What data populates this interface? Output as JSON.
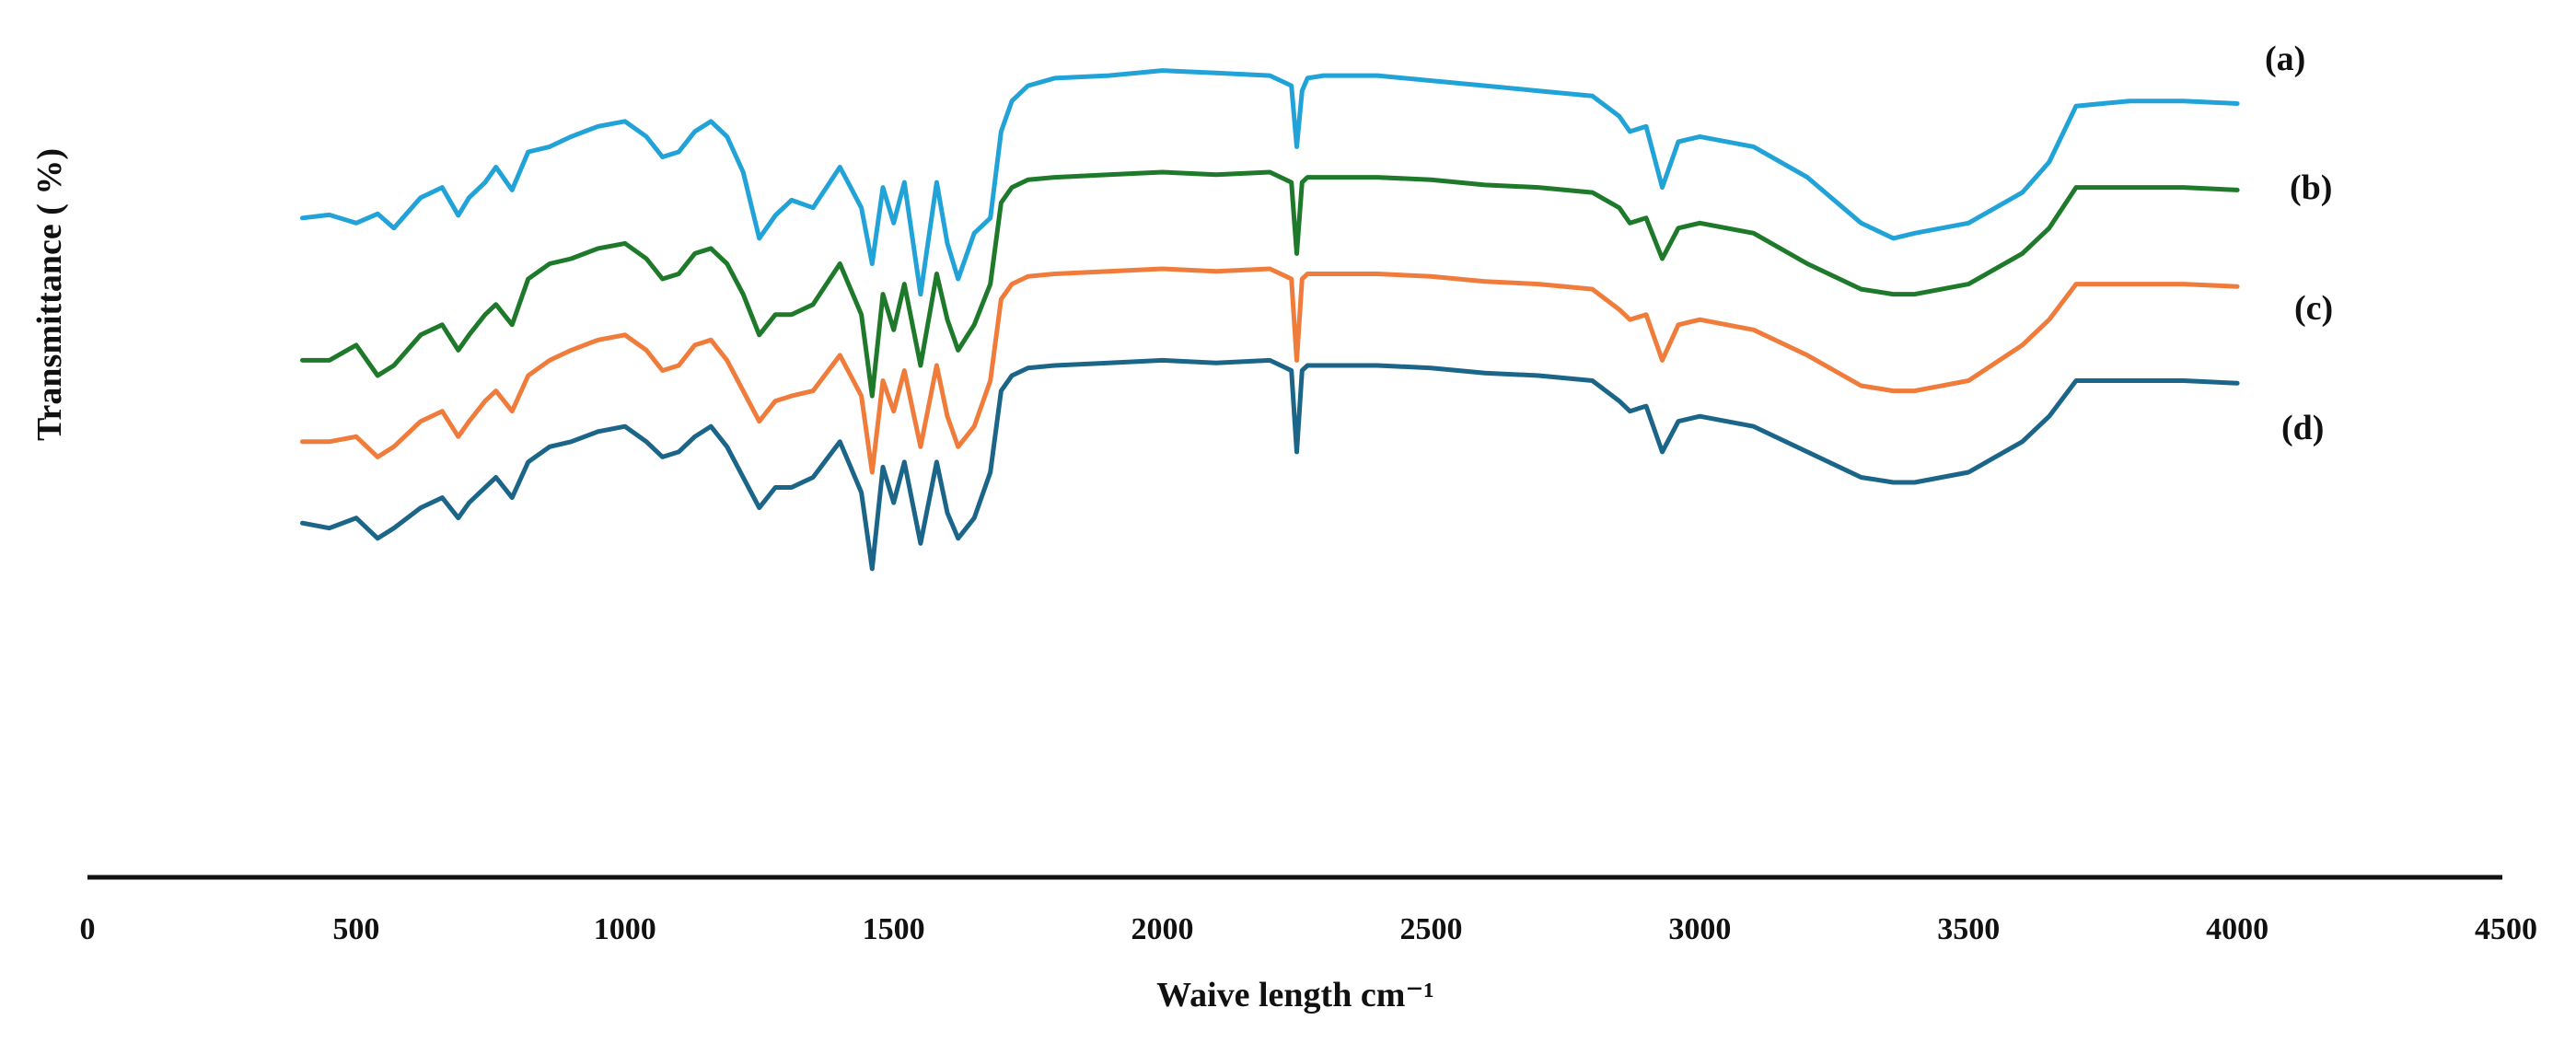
{
  "chart_data": {
    "type": "line",
    "xlabel": "Waive length cm⁻¹",
    "ylabel": "Transmittance ( %)",
    "xlim": [
      0,
      4500
    ],
    "x_ticks": [
      0,
      500,
      1000,
      1500,
      2000,
      2500,
      3000,
      3500,
      4000,
      4500
    ],
    "y_ticks_shown": false,
    "grid": false,
    "legend": "inline labels at right end of each trace",
    "series": [
      {
        "name": "(a)",
        "color": "#22A3D8",
        "x": [
          400,
          450,
          500,
          540,
          570,
          620,
          660,
          690,
          710,
          740,
          760,
          790,
          820,
          860,
          900,
          950,
          1000,
          1040,
          1070,
          1100,
          1130,
          1160,
          1190,
          1220,
          1250,
          1280,
          1310,
          1350,
          1400,
          1420,
          1440,
          1460,
          1480,
          1500,
          1520,
          1550,
          1580,
          1600,
          1620,
          1650,
          1680,
          1700,
          1720,
          1750,
          1800,
          1900,
          2000,
          2100,
          2200,
          2240,
          2250,
          2260,
          2270,
          2300,
          2400,
          2500,
          2600,
          2700,
          2800,
          2850,
          2870,
          2900,
          2930,
          2960,
          3000,
          3100,
          3200,
          3300,
          3360,
          3400,
          3500,
          3600,
          3650,
          3700,
          3800,
          3900,
          4000
        ],
        "y": [
          3,
          3.6,
          2,
          3.8,
          1,
          7,
          9,
          3.5,
          7,
          10,
          13,
          8.5,
          16,
          17,
          19,
          21,
          22,
          19,
          15,
          16,
          20,
          22,
          19,
          12,
          -1,
          3.5,
          6.5,
          5,
          13,
          9,
          5,
          -6,
          9,
          2,
          10,
          -12,
          10,
          -2,
          -9,
          0,
          3,
          20,
          26,
          29,
          30.5,
          31,
          32,
          31.5,
          31,
          29,
          17,
          28,
          30.5,
          31,
          31,
          30,
          29,
          28,
          27,
          23,
          20,
          21,
          9,
          18,
          19,
          17,
          11,
          2,
          -1,
          0,
          2,
          8,
          14,
          25,
          26,
          26,
          25.5
        ]
      },
      {
        "name": "(b)",
        "color": "#1E7A2A",
        "x": [
          400,
          450,
          500,
          540,
          570,
          620,
          660,
          690,
          710,
          740,
          760,
          790,
          820,
          860,
          900,
          950,
          1000,
          1040,
          1070,
          1100,
          1130,
          1160,
          1190,
          1220,
          1250,
          1280,
          1310,
          1350,
          1400,
          1420,
          1440,
          1460,
          1480,
          1500,
          1520,
          1550,
          1580,
          1600,
          1620,
          1650,
          1680,
          1700,
          1720,
          1750,
          1800,
          1900,
          2000,
          2100,
          2200,
          2240,
          2250,
          2260,
          2270,
          2300,
          2400,
          2500,
          2600,
          2700,
          2800,
          2850,
          2870,
          2900,
          2930,
          2960,
          3000,
          3100,
          3200,
          3300,
          3360,
          3400,
          3500,
          3600,
          3650,
          3700,
          3800,
          3900,
          4000
        ],
        "y": [
          -25,
          -25,
          -22,
          -28,
          -26,
          -20,
          -18,
          -23,
          -20,
          -16,
          -14,
          -18,
          -9,
          -6,
          -5,
          -3,
          -2,
          -5,
          -9,
          -8,
          -4,
          -3,
          -6,
          -12,
          -20,
          -16,
          -16,
          -14,
          -6,
          -11,
          -16,
          -32,
          -12,
          -19,
          -10,
          -26,
          -8,
          -17,
          -23,
          -18,
          -10,
          6,
          9,
          10.5,
          11,
          11.5,
          12,
          11.5,
          12,
          10,
          -4,
          10,
          11,
          11,
          11,
          10.5,
          9.5,
          9,
          8,
          5,
          2,
          3,
          -5,
          1,
          2,
          0,
          -6,
          -11,
          -12,
          -12,
          -10,
          -4,
          1,
          9,
          9,
          9,
          8.5
        ]
      },
      {
        "name": "(c)",
        "color": "#F07C3C",
        "x": [
          400,
          450,
          500,
          540,
          570,
          620,
          660,
          690,
          710,
          740,
          760,
          790,
          820,
          860,
          900,
          950,
          1000,
          1040,
          1070,
          1100,
          1130,
          1160,
          1190,
          1220,
          1250,
          1280,
          1310,
          1350,
          1400,
          1420,
          1440,
          1460,
          1480,
          1500,
          1520,
          1550,
          1580,
          1600,
          1620,
          1650,
          1680,
          1700,
          1720,
          1750,
          1800,
          1900,
          2000,
          2100,
          2200,
          2240,
          2250,
          2260,
          2270,
          2300,
          2400,
          2500,
          2600,
          2700,
          2800,
          2850,
          2870,
          2900,
          2930,
          2960,
          3000,
          3100,
          3200,
          3300,
          3360,
          3400,
          3500,
          3600,
          3650,
          3700,
          3800,
          3900,
          4000
        ],
        "y": [
          -41,
          -41,
          -40,
          -44,
          -42,
          -37,
          -35,
          -40,
          -37,
          -33,
          -31,
          -35,
          -28,
          -25,
          -23,
          -21,
          -20,
          -23,
          -27,
          -26,
          -22,
          -21,
          -25,
          -31,
          -37,
          -33,
          -32,
          -31,
          -24,
          -28,
          -32,
          -47,
          -29,
          -35,
          -27,
          -42,
          -26,
          -36,
          -42,
          -38,
          -29,
          -13,
          -10,
          -8.5,
          -8,
          -7.5,
          -7,
          -7.5,
          -7,
          -9,
          -25,
          -9,
          -8,
          -8,
          -8,
          -8.5,
          -9.5,
          -10,
          -11,
          -15,
          -17,
          -16,
          -25,
          -18,
          -17,
          -19,
          -24,
          -30,
          -31,
          -31,
          -29,
          -22,
          -17,
          -10,
          -10,
          -10,
          -10.5
        ]
      },
      {
        "name": "(d)",
        "color": "#1B6688",
        "x": [
          400,
          450,
          500,
          540,
          570,
          620,
          660,
          690,
          710,
          740,
          760,
          790,
          820,
          860,
          900,
          950,
          1000,
          1040,
          1070,
          1100,
          1130,
          1160,
          1190,
          1220,
          1250,
          1280,
          1310,
          1350,
          1400,
          1420,
          1440,
          1460,
          1480,
          1500,
          1520,
          1550,
          1580,
          1600,
          1620,
          1650,
          1680,
          1700,
          1720,
          1750,
          1800,
          1900,
          2000,
          2100,
          2200,
          2240,
          2250,
          2260,
          2270,
          2300,
          2400,
          2500,
          2600,
          2700,
          2800,
          2850,
          2870,
          2900,
          2930,
          2960,
          3000,
          3100,
          3200,
          3300,
          3360,
          3400,
          3500,
          3600,
          3650,
          3700,
          3800,
          3900,
          4000
        ],
        "y": [
          -57,
          -58,
          -56,
          -60,
          -58,
          -54,
          -52,
          -56,
          -53,
          -50,
          -48,
          -52,
          -45,
          -42,
          -41,
          -39,
          -38,
          -41,
          -44,
          -43,
          -40,
          -38,
          -42,
          -48,
          -54,
          -50,
          -50,
          -48,
          -41,
          -46,
          -51,
          -66,
          -46,
          -53,
          -45,
          -61,
          -45,
          -55,
          -60,
          -56,
          -47,
          -31,
          -28,
          -26.5,
          -26,
          -25.5,
          -25,
          -25.5,
          -25,
          -27,
          -43,
          -27,
          -26,
          -26,
          -26,
          -26.5,
          -27.5,
          -28,
          -29,
          -33,
          -35,
          -34,
          -43,
          -37,
          -36,
          -38,
          -43,
          -48,
          -49,
          -49,
          -47,
          -41,
          -36,
          -29,
          -29,
          -29,
          -29.5
        ]
      }
    ]
  }
}
